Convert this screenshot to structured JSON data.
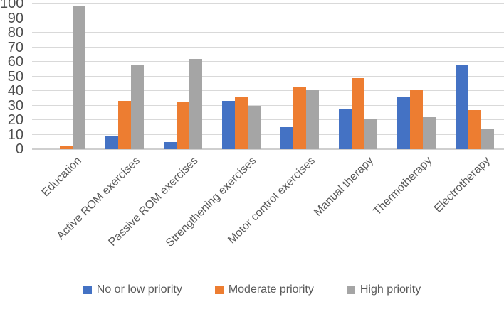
{
  "chart_data": {
    "type": "bar",
    "title": "",
    "categories": [
      "Education",
      "Active ROM exercises",
      "Passive ROM exercises",
      "Strengthening exercises",
      "Motor control exercises",
      "Manual therapy",
      "Thermotherapy",
      "Electrotherapy"
    ],
    "series": [
      {
        "name": "No or low priority",
        "color": "#4472C4",
        "values": [
          0,
          9,
          5,
          33,
          15,
          28,
          36,
          58
        ]
      },
      {
        "name": "Moderate priority",
        "color": "#ED7D31",
        "values": [
          2,
          33,
          32,
          36,
          43,
          49,
          41,
          27
        ]
      },
      {
        "name": "High priority",
        "color": "#A5A5A5",
        "values": [
          98,
          58,
          62,
          30,
          41,
          21,
          22,
          14
        ]
      }
    ],
    "ylim": [
      0,
      100
    ],
    "ytick_step": 10,
    "ytick_labels": [
      "0",
      "10",
      "20",
      "30",
      "40",
      "50",
      "60",
      "70",
      "80",
      "90",
      "100"
    ],
    "grid": true,
    "legend_position": "bottom",
    "colors": {
      "gridline": "#d9d9d9",
      "axis_line": "#cfcfcf",
      "tick_text": "#4d4d4d",
      "label_text": "#595959",
      "background": "#ffffff"
    }
  }
}
